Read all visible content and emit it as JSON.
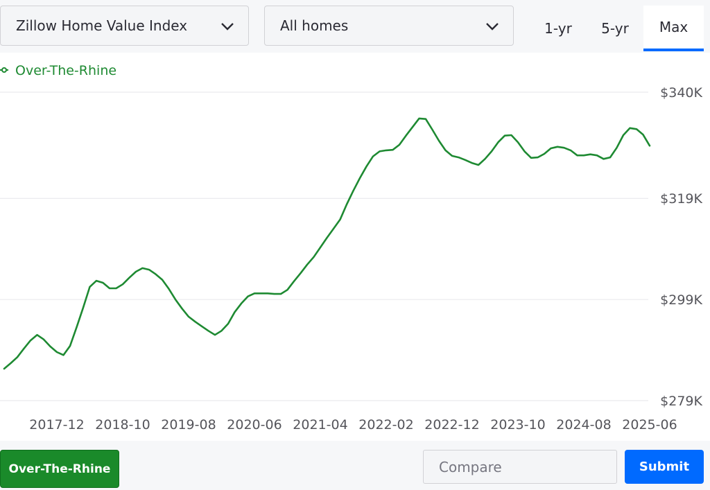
{
  "controls": {
    "metric_select": "Zillow Home Value Index",
    "home_type_select": "All homes",
    "ranges": [
      "1-yr",
      "5-yr",
      "Max"
    ],
    "active_range": 2
  },
  "chart_data": {
    "type": "line",
    "x": [
      "2017-04",
      "2017-05",
      "2017-06",
      "2017-07",
      "2017-08",
      "2017-09",
      "2017-10",
      "2017-11",
      "2017-12",
      "2018-01",
      "2018-02",
      "2018-03",
      "2018-04",
      "2018-05",
      "2018-06",
      "2018-07",
      "2018-08",
      "2018-09",
      "2018-10",
      "2018-11",
      "2018-12",
      "2019-01",
      "2019-02",
      "2019-03",
      "2019-04",
      "2019-05",
      "2019-06",
      "2019-07",
      "2019-08",
      "2019-09",
      "2019-10",
      "2019-11",
      "2019-12",
      "2020-01",
      "2020-02",
      "2020-03",
      "2020-04",
      "2020-05",
      "2020-06",
      "2020-07",
      "2020-08",
      "2020-09",
      "2020-10",
      "2020-11",
      "2020-12",
      "2021-01",
      "2021-02",
      "2021-03",
      "2021-04",
      "2021-05",
      "2021-06",
      "2021-07",
      "2021-08",
      "2021-09",
      "2021-10",
      "2021-11",
      "2021-12",
      "2022-01",
      "2022-02",
      "2022-03",
      "2022-04",
      "2022-05",
      "2022-06",
      "2022-07",
      "2022-08",
      "2022-09",
      "2022-10",
      "2022-11",
      "2022-12",
      "2023-01",
      "2023-02",
      "2023-03",
      "2023-04",
      "2023-05",
      "2023-06",
      "2023-07",
      "2023-08",
      "2023-09",
      "2023-10",
      "2023-11",
      "2023-12",
      "2024-01",
      "2024-02",
      "2024-03",
      "2024-04",
      "2024-05",
      "2024-06",
      "2024-07",
      "2024-08",
      "2024-09",
      "2024-10",
      "2024-11",
      "2024-12",
      "2025-01",
      "2025-02",
      "2025-03",
      "2025-04",
      "2025-05",
      "2025-06"
    ],
    "series": [
      {
        "name": "Over-The-Rhine",
        "color": "#1e8a32",
        "values": [
          285300,
          286400,
          287600,
          289300,
          290900,
          292000,
          291100,
          289700,
          288600,
          288000,
          289800,
          293500,
          297400,
          301500,
          302700,
          302300,
          301200,
          301200,
          302000,
          303300,
          304500,
          305200,
          304900,
          304000,
          302900,
          301100,
          299000,
          297200,
          295600,
          294600,
          293700,
          292800,
          292000,
          292800,
          294200,
          296500,
          298200,
          299600,
          300200,
          300200,
          300200,
          300100,
          300100,
          300900,
          302600,
          304200,
          305900,
          307400,
          309300,
          311200,
          313000,
          314800,
          317800,
          320500,
          323000,
          325300,
          327300,
          328300,
          328500,
          328600,
          329600,
          331400,
          333100,
          334800,
          334700,
          332600,
          330400,
          328500,
          327400,
          327100,
          326600,
          326000,
          325600,
          326800,
          328300,
          330100,
          331400,
          331500,
          330100,
          328300,
          327000,
          327100,
          327800,
          328900,
          329200,
          329000,
          328500,
          327500,
          327500,
          327700,
          327500,
          326800,
          327100,
          329000,
          331500,
          332900,
          332700,
          331600,
          329400
        ]
      }
    ],
    "xticks": [
      "2017-12",
      "2018-10",
      "2019-08",
      "2020-06",
      "2021-04",
      "2022-02",
      "2022-12",
      "2023-10",
      "2024-08",
      "2025-06"
    ],
    "ylim": [
      279000,
      340000
    ],
    "yticks": [
      {
        "value": 279000,
        "label": "$279K"
      },
      {
        "value": 299000,
        "label": "$299K"
      },
      {
        "value": 319000,
        "label": "$319K"
      },
      {
        "value": 340000,
        "label": "$340K"
      }
    ],
    "grid": true
  },
  "footer": {
    "region_button": "Over-The-Rhine",
    "compare_placeholder": "Compare",
    "submit_button": "Submit"
  }
}
